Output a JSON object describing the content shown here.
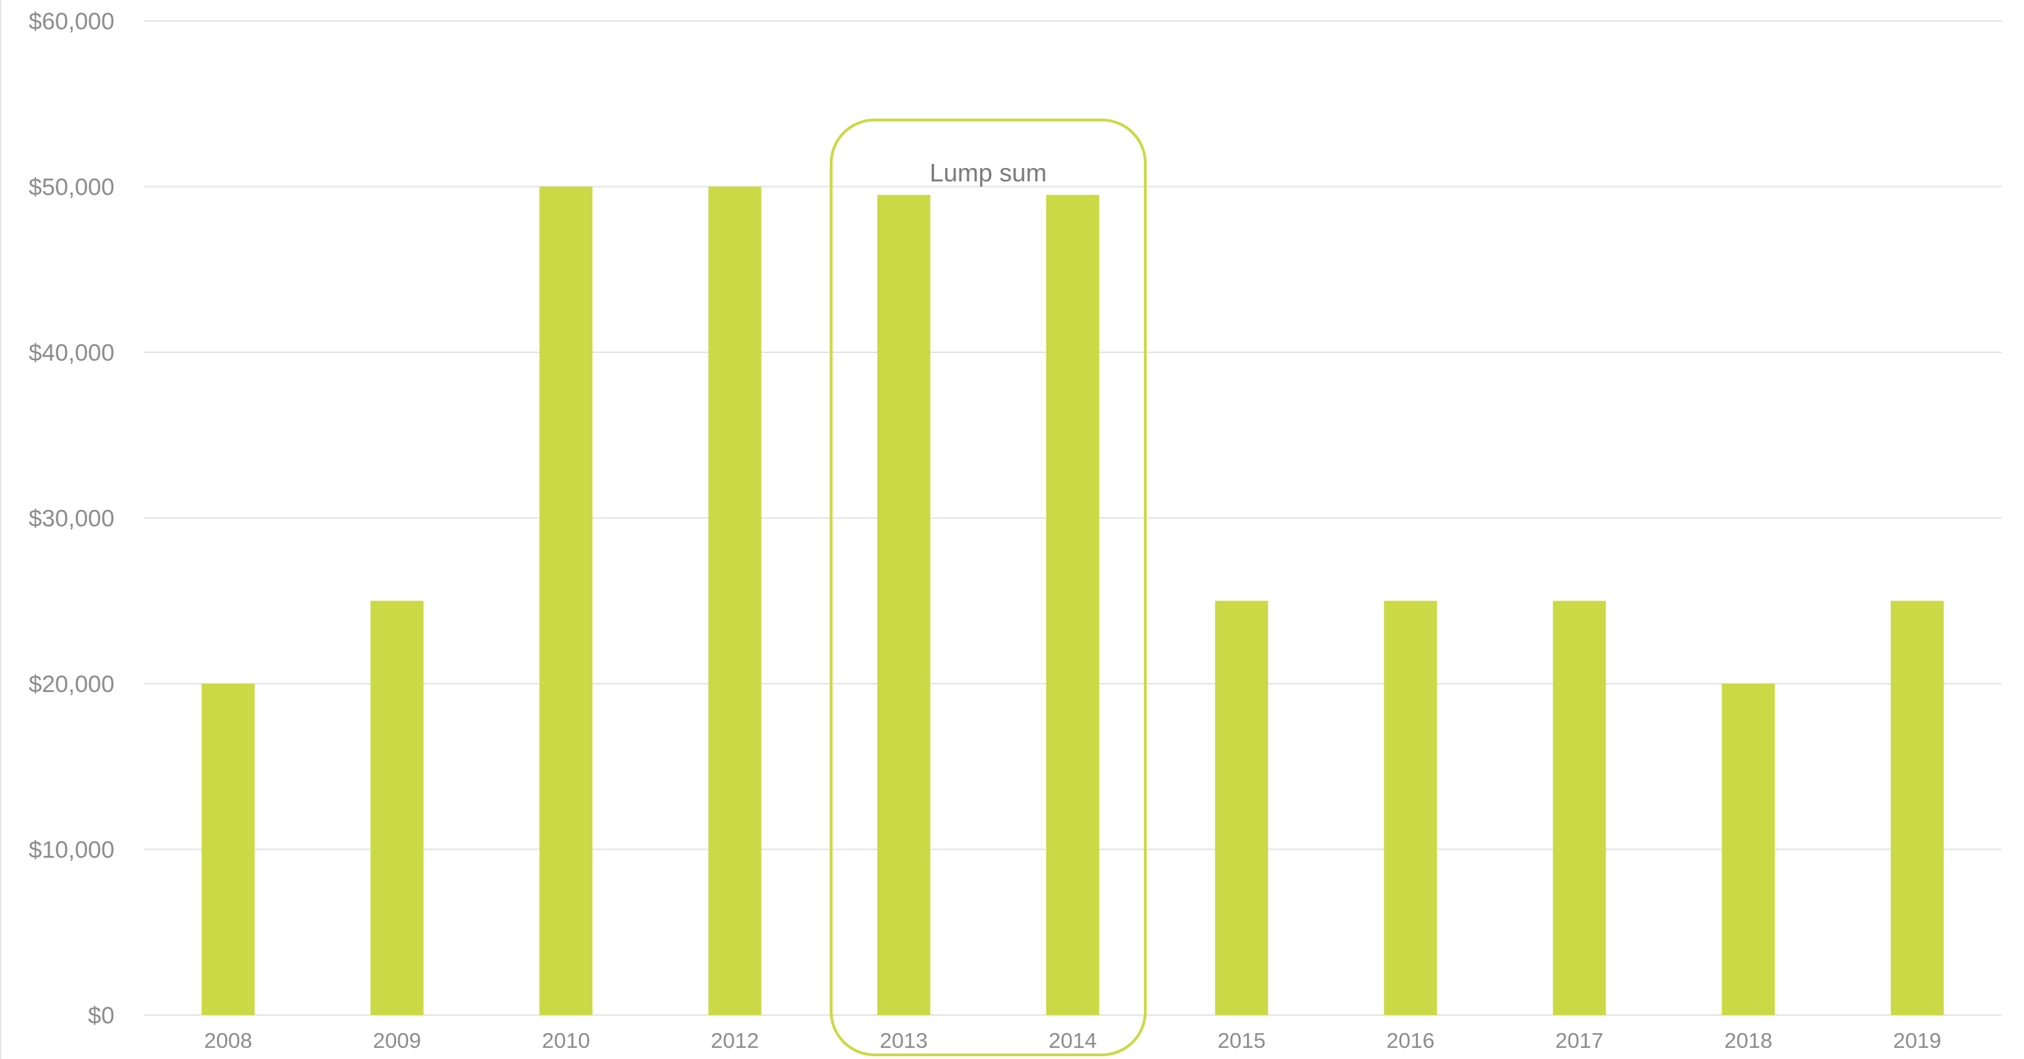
{
  "chart_data": {
    "type": "bar",
    "title": "",
    "xlabel": "",
    "ylabel": "",
    "categories": [
      "2008",
      "2009",
      "2010",
      "2012",
      "2013",
      "2014",
      "2015",
      "2016",
      "2017",
      "2018",
      "2019"
    ],
    "values": [
      20000,
      25000,
      50000,
      50000,
      49500,
      49500,
      25000,
      25000,
      25000,
      20000,
      25000
    ],
    "ylim": [
      0,
      60000
    ],
    "yticks": [
      0,
      10000,
      20000,
      30000,
      40000,
      50000,
      60000
    ],
    "ytick_labels": [
      "$0",
      "$10,000",
      "$20,000",
      "$30,000",
      "$40,000",
      "$50,000",
      "$60,000"
    ],
    "grid": true,
    "legend": "none",
    "bar_color": "#cad945",
    "annotation": {
      "text": "Lump sum",
      "categories": [
        "2013",
        "2014"
      ],
      "color": "#cad945"
    }
  }
}
